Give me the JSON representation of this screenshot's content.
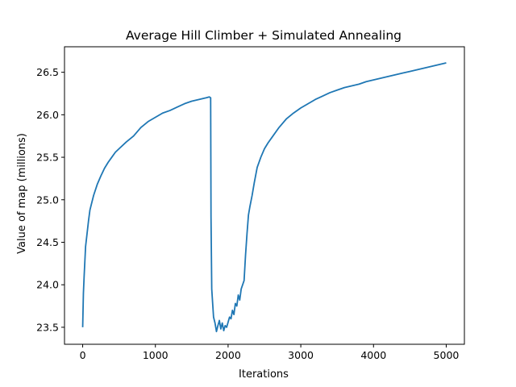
{
  "chart_data": {
    "type": "line",
    "title": "Average Hill Climber + Simulated Annealing",
    "xlabel": "Iterations",
    "ylabel": "Value of map (millions)",
    "xlim": [
      -250,
      5250
    ],
    "ylim": [
      23.3,
      26.8
    ],
    "xticks": [
      0,
      1000,
      2000,
      3000,
      4000,
      5000
    ],
    "xtick_labels": [
      "0",
      "1000",
      "2000",
      "3000",
      "4000",
      "5000"
    ],
    "yticks": [
      23.5,
      24.0,
      24.5,
      25.0,
      25.5,
      26.0,
      26.5
    ],
    "ytick_labels": [
      "23.5",
      "24.0",
      "24.5",
      "25.0",
      "25.5",
      "26.0",
      "26.5"
    ],
    "grid": false,
    "line_color": "#1f77b4",
    "series": [
      {
        "x": [
          0,
          10,
          20,
          40,
          60,
          80,
          100,
          150,
          200,
          250,
          300,
          350,
          400,
          450,
          500,
          600,
          700,
          800,
          900,
          1000,
          1100,
          1200,
          1300,
          1400,
          1500,
          1600,
          1700,
          1740,
          1760,
          1765,
          1775,
          1790,
          1800,
          1820,
          1840,
          1860,
          1880,
          1900,
          1920,
          1940,
          1960,
          1980,
          2000,
          2020,
          2040,
          2060,
          2080,
          2100,
          2120,
          2140,
          2160,
          2180,
          2200,
          2220,
          2240,
          2260,
          2280,
          2300,
          2330,
          2360,
          2400,
          2450,
          2500,
          2550,
          2600,
          2700,
          2800,
          2900,
          3000,
          3100,
          3200,
          3300,
          3400,
          3500,
          3600,
          3700,
          3800,
          3900,
          4000,
          4100,
          4200,
          4300,
          4400,
          4500,
          4600,
          4700,
          4800,
          4900,
          5000
        ],
        "y": [
          23.5,
          23.9,
          24.1,
          24.45,
          24.6,
          24.75,
          24.88,
          25.05,
          25.18,
          25.28,
          25.37,
          25.44,
          25.5,
          25.56,
          25.6,
          25.68,
          25.75,
          25.85,
          25.92,
          25.97,
          26.02,
          26.05,
          26.09,
          26.13,
          26.16,
          26.18,
          26.2,
          26.21,
          26.2,
          24.8,
          23.95,
          23.75,
          23.62,
          23.55,
          23.45,
          23.52,
          23.58,
          23.48,
          23.55,
          23.46,
          23.52,
          23.5,
          23.56,
          23.62,
          23.6,
          23.7,
          23.65,
          23.78,
          23.75,
          23.88,
          23.82,
          23.95,
          24.0,
          24.05,
          24.35,
          24.6,
          24.82,
          24.92,
          25.05,
          25.2,
          25.38,
          25.5,
          25.6,
          25.67,
          25.73,
          25.85,
          25.95,
          26.02,
          26.08,
          26.13,
          26.18,
          26.22,
          26.26,
          26.29,
          26.32,
          26.34,
          26.36,
          26.39,
          26.41,
          26.43,
          26.45,
          26.47,
          26.49,
          26.51,
          26.53,
          26.55,
          26.57,
          26.59,
          26.61
        ]
      }
    ]
  }
}
